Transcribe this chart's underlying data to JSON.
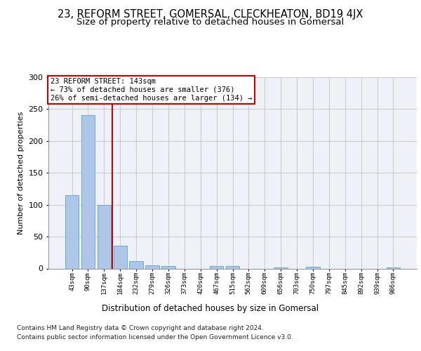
{
  "title": "23, REFORM STREET, GOMERSAL, CLECKHEATON, BD19 4JX",
  "subtitle": "Size of property relative to detached houses in Gomersal",
  "xlabel": "Distribution of detached houses by size in Gomersal",
  "ylabel": "Number of detached properties",
  "categories": [
    "43sqm",
    "90sqm",
    "137sqm",
    "184sqm",
    "232sqm",
    "279sqm",
    "326sqm",
    "373sqm",
    "420sqm",
    "467sqm",
    "515sqm",
    "562sqm",
    "609sqm",
    "656sqm",
    "703sqm",
    "750sqm",
    "797sqm",
    "845sqm",
    "892sqm",
    "939sqm",
    "986sqm"
  ],
  "values": [
    115,
    240,
    100,
    36,
    12,
    5,
    4,
    0,
    0,
    4,
    4,
    0,
    0,
    2,
    0,
    3,
    0,
    0,
    0,
    0,
    2
  ],
  "bar_color": "#aec6e8",
  "bar_edge_color": "#5a9fd4",
  "highlight_index": 2,
  "annotation_text": "23 REFORM STREET: 143sqm\n← 73% of detached houses are smaller (376)\n26% of semi-detached houses are larger (134) →",
  "annotation_box_color": "#ffffff",
  "annotation_box_edgecolor": "#cc0000",
  "ylim": [
    0,
    300
  ],
  "yticks": [
    0,
    50,
    100,
    150,
    200,
    250,
    300
  ],
  "grid_color": "#cccccc",
  "bg_color": "#eef2f8",
  "footer_line1": "Contains HM Land Registry data © Crown copyright and database right 2024.",
  "footer_line2": "Contains public sector information licensed under the Open Government Licence v3.0.",
  "title_fontsize": 10.5,
  "subtitle_fontsize": 9.5
}
